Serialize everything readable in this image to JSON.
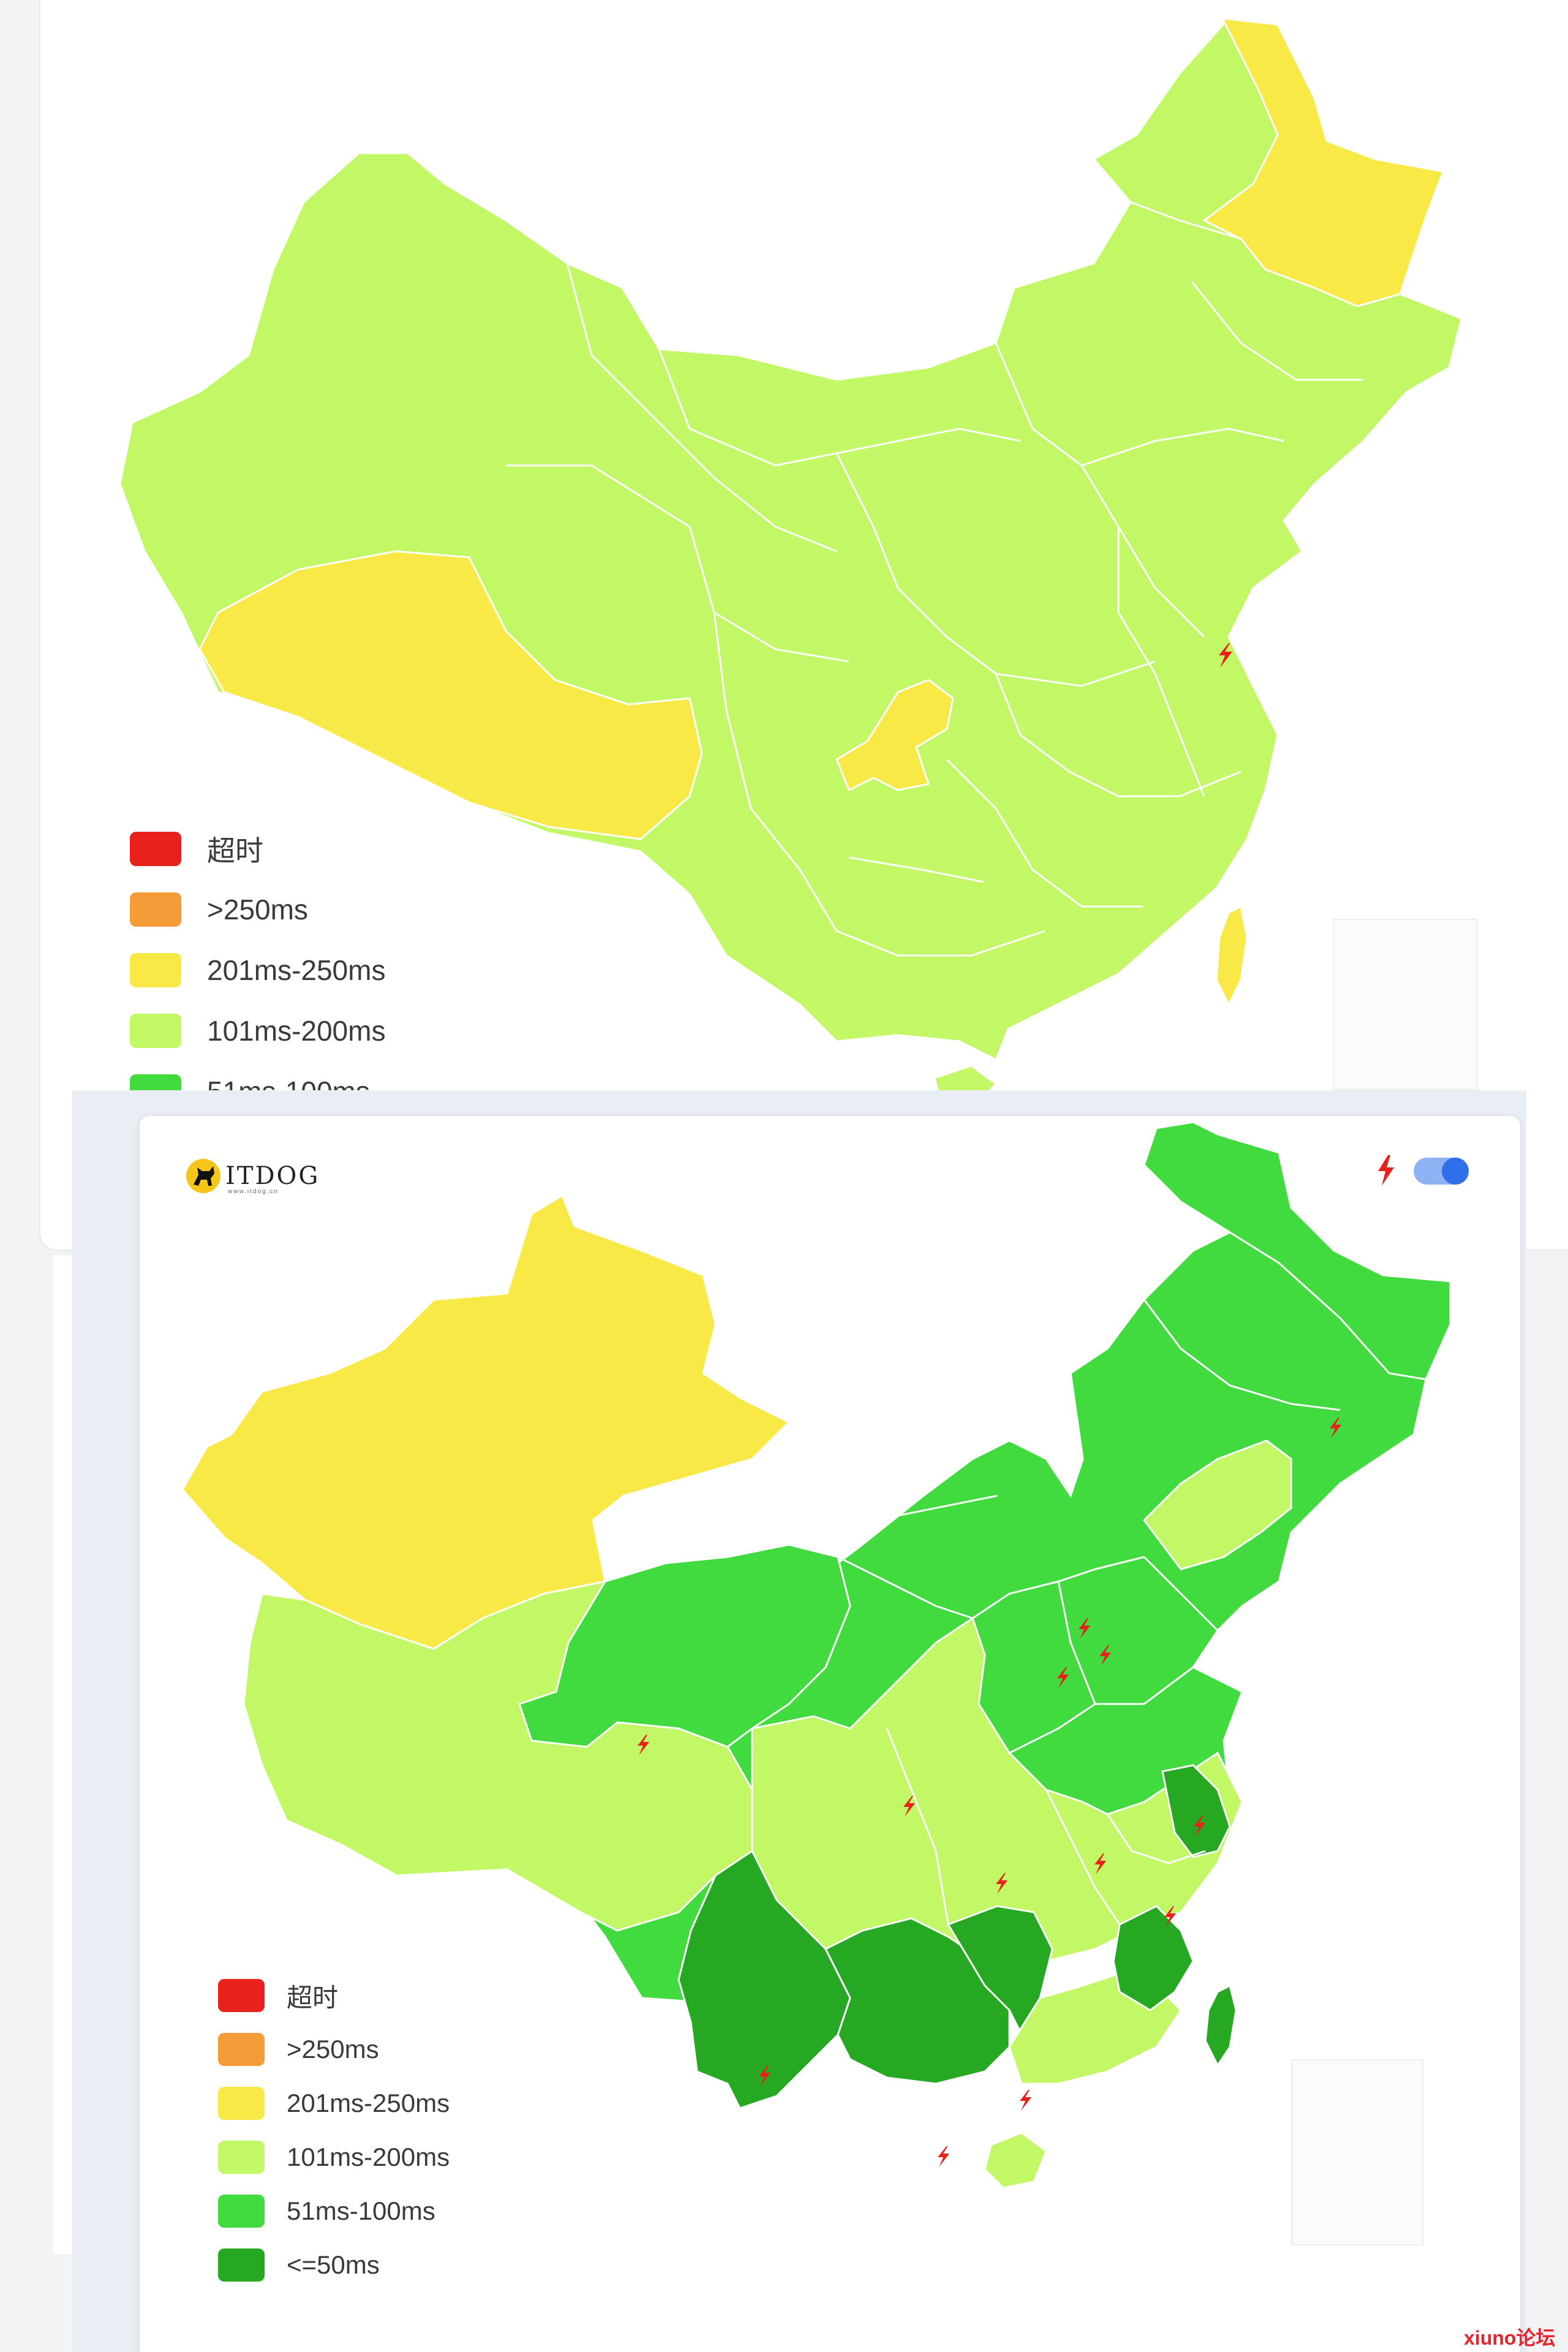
{
  "colors": {
    "timeout": "#e8211d",
    "over250": "#f59b37",
    "ms201_250": "#f8e946",
    "ms101_200": "#c2f765",
    "ms51_100": "#41db40",
    "le50": "#27a823",
    "border": "#ffffff",
    "accent": "#2f6fe9",
    "marker": "#e8211d"
  },
  "legend": [
    {
      "label": "超时",
      "color": "#e8211d"
    },
    {
      "label": ">250ms",
      "color": "#f59b37"
    },
    {
      "label": "201ms-250ms",
      "color": "#f8e946"
    },
    {
      "label": "101ms-200ms",
      "color": "#c2f765"
    },
    {
      "label": "51ms-100ms",
      "color": "#41db40"
    },
    {
      "label": "<=50ms",
      "color": "#27a823"
    }
  ],
  "back_map": {
    "regions": [
      {
        "id": "china",
        "tier": "101ms-200ms"
      },
      {
        "id": "tibet",
        "tier": "201ms-250ms"
      },
      {
        "id": "heilongjiang",
        "tier": "201ms-250ms"
      },
      {
        "id": "chongqing",
        "tier": "201ms-250ms"
      },
      {
        "id": "taiwan",
        "tier": "201ms-250ms"
      }
    ],
    "markers": [
      {
        "region": "jiangsu",
        "icon": "lightning-icon"
      }
    ]
  },
  "front_map": {
    "regions": [
      {
        "id": "xinjiang",
        "tier": "201ms-250ms"
      },
      {
        "id": "tibet",
        "tier": "101ms-200ms"
      },
      {
        "id": "sichuan",
        "tier": "101ms-200ms"
      },
      {
        "id": "qinghai",
        "tier": "51ms-100ms"
      },
      {
        "id": "north",
        "tier": "51ms-100ms"
      },
      {
        "id": "northeast",
        "tier": "51ms-100ms"
      },
      {
        "id": "liaoning",
        "tier": "101ms-200ms"
      },
      {
        "id": "yunnan",
        "tier": "<=50ms"
      },
      {
        "id": "guizhou-guangxi",
        "tier": "<=50ms"
      },
      {
        "id": "hunan",
        "tier": "<=50ms"
      },
      {
        "id": "jiangsu",
        "tier": "<=50ms"
      },
      {
        "id": "fujian",
        "tier": "<=50ms"
      },
      {
        "id": "taiwan",
        "tier": "<=50ms"
      },
      {
        "id": "central",
        "tier": "101ms-200ms"
      },
      {
        "id": "hainan",
        "tier": "101ms-200ms"
      }
    ],
    "markers": [
      {
        "region": "heilongjiang",
        "icon": "lightning-icon"
      },
      {
        "region": "qinghai",
        "icon": "lightning-icon"
      },
      {
        "region": "beijing",
        "icon": "lightning-icon"
      },
      {
        "region": "tianjin",
        "icon": "lightning-icon"
      },
      {
        "region": "hebei",
        "icon": "lightning-icon"
      },
      {
        "region": "shaanxi",
        "icon": "lightning-icon"
      },
      {
        "region": "henan",
        "icon": "lightning-icon"
      },
      {
        "region": "anhui",
        "icon": "lightning-icon"
      },
      {
        "region": "jiangsu",
        "icon": "lightning-icon"
      },
      {
        "region": "zhejiang",
        "icon": "lightning-icon"
      },
      {
        "region": "yunnan",
        "icon": "lightning-icon"
      },
      {
        "region": "guangdong",
        "icon": "lightning-icon"
      },
      {
        "region": "hainan",
        "icon": "lightning-icon"
      }
    ]
  },
  "logo": {
    "text": "ITDOG",
    "subtitle": "www.itdog.cn"
  },
  "watermark": "xiuno论坛"
}
